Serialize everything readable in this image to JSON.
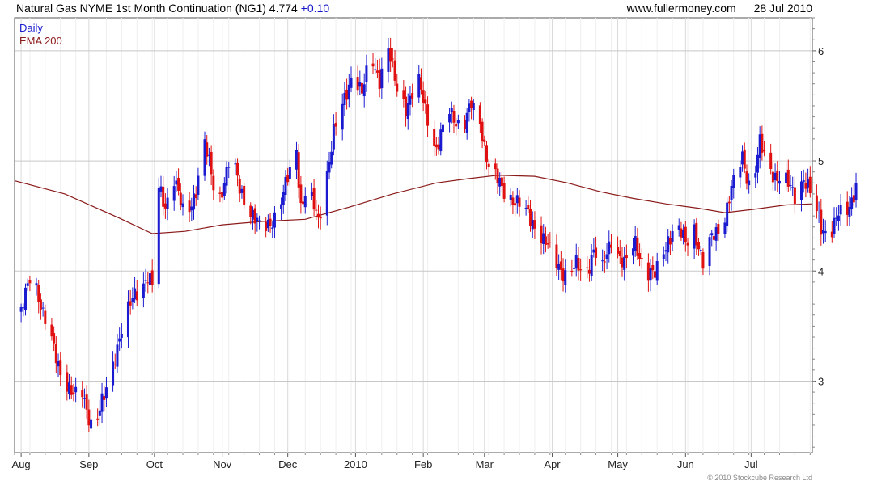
{
  "header": {
    "instrument": "Natural Gas NYME 1st Month Continuation (NG1) 4.774",
    "change": "+0.10",
    "website": "www.fullermoney.com",
    "date": "28 Jul 2010"
  },
  "copyright": "© 2010 Stockcube Research Ltd",
  "colors": {
    "up": "#1a1ad0",
    "down": "#e01010",
    "ema": "#8b1a1a",
    "grid": "#d9d9d9",
    "axis": "#555555"
  },
  "chart_data": {
    "type": "candlestick",
    "legend": [
      {
        "label": "Daily",
        "color": "#1a1ad0"
      },
      {
        "label": "EMA 200",
        "color": "#8b1a1a"
      }
    ],
    "legend_position": "top-left",
    "ylim": [
      2.35,
      6.3
    ],
    "y_ticks": [
      3,
      4,
      5,
      6
    ],
    "x_tick_labels": [
      "Aug",
      "Sep",
      "Oct",
      "Nov",
      "Dec",
      "2010",
      "Feb",
      "Mar",
      "Apr",
      "May",
      "Jun",
      "Jul"
    ],
    "x_tick_days": [
      0,
      31,
      61,
      92,
      122,
      153,
      184,
      212,
      243,
      273,
      304,
      334
    ],
    "x_range_days": [
      -3,
      362
    ],
    "grid": true,
    "price_path": [
      [
        0,
        3.6
      ],
      [
        5,
        4.05
      ],
      [
        10,
        3.6
      ],
      [
        18,
        3.1
      ],
      [
        24,
        2.85
      ],
      [
        28,
        2.9
      ],
      [
        33,
        2.55
      ],
      [
        38,
        2.85
      ],
      [
        45,
        3.4
      ],
      [
        52,
        3.8
      ],
      [
        58,
        3.95
      ],
      [
        61,
        3.8
      ],
      [
        62,
        4.8
      ],
      [
        66,
        4.6
      ],
      [
        70,
        4.85
      ],
      [
        75,
        4.45
      ],
      [
        80,
        4.75
      ],
      [
        84,
        5.15
      ],
      [
        90,
        4.6
      ],
      [
        96,
        5.05
      ],
      [
        100,
        4.75
      ],
      [
        105,
        4.55
      ],
      [
        110,
        4.35
      ],
      [
        116,
        4.5
      ],
      [
        120,
        4.7
      ],
      [
        126,
        5.1
      ],
      [
        128,
        4.6
      ],
      [
        131,
        4.75
      ],
      [
        136,
        4.45
      ],
      [
        143,
        5.25
      ],
      [
        148,
        5.55
      ],
      [
        152,
        5.85
      ],
      [
        156,
        5.6
      ],
      [
        160,
        5.95
      ],
      [
        164,
        5.75
      ],
      [
        168,
        6.0
      ],
      [
        172,
        5.65
      ],
      [
        176,
        5.5
      ],
      [
        182,
        5.7
      ],
      [
        186,
        5.4
      ],
      [
        190,
        5.1
      ],
      [
        196,
        5.45
      ],
      [
        202,
        5.3
      ],
      [
        206,
        5.5
      ],
      [
        210,
        5.35
      ],
      [
        214,
        4.95
      ],
      [
        220,
        4.75
      ],
      [
        228,
        4.6
      ],
      [
        236,
        4.4
      ],
      [
        244,
        4.1
      ],
      [
        250,
        3.95
      ],
      [
        254,
        4.05
      ],
      [
        258,
        3.95
      ],
      [
        262,
        4.2
      ],
      [
        266,
        4.0
      ],
      [
        270,
        4.3
      ],
      [
        276,
        4.05
      ],
      [
        281,
        4.25
      ],
      [
        286,
        4.0
      ],
      [
        290,
        3.95
      ],
      [
        296,
        4.3
      ],
      [
        300,
        4.4
      ],
      [
        304,
        4.25
      ],
      [
        308,
        4.4
      ],
      [
        312,
        4.05
      ],
      [
        316,
        4.3
      ],
      [
        322,
        4.5
      ],
      [
        326,
        4.8
      ],
      [
        330,
        5.05
      ],
      [
        334,
        4.7
      ],
      [
        338,
        5.15
      ],
      [
        342,
        4.95
      ],
      [
        346,
        4.85
      ],
      [
        350,
        4.8
      ],
      [
        354,
        4.7
      ],
      [
        358,
        4.85
      ],
      [
        362,
        4.65
      ],
      [
        366,
        4.4
      ],
      [
        370,
        4.35
      ],
      [
        374,
        4.5
      ],
      [
        378,
        4.55
      ],
      [
        382,
        4.774
      ]
    ],
    "ema_200": [
      [
        -3,
        4.82
      ],
      [
        20,
        4.7
      ],
      [
        45,
        4.48
      ],
      [
        60,
        4.34
      ],
      [
        75,
        4.36
      ],
      [
        92,
        4.42
      ],
      [
        110,
        4.45
      ],
      [
        130,
        4.47
      ],
      [
        150,
        4.58
      ],
      [
        170,
        4.7
      ],
      [
        190,
        4.8
      ],
      [
        205,
        4.84
      ],
      [
        218,
        4.87
      ],
      [
        235,
        4.86
      ],
      [
        250,
        4.8
      ],
      [
        265,
        4.72
      ],
      [
        280,
        4.66
      ],
      [
        295,
        4.61
      ],
      [
        310,
        4.57
      ],
      [
        322,
        4.53
      ],
      [
        335,
        4.56
      ],
      [
        350,
        4.6
      ],
      [
        362,
        4.61
      ]
    ]
  }
}
